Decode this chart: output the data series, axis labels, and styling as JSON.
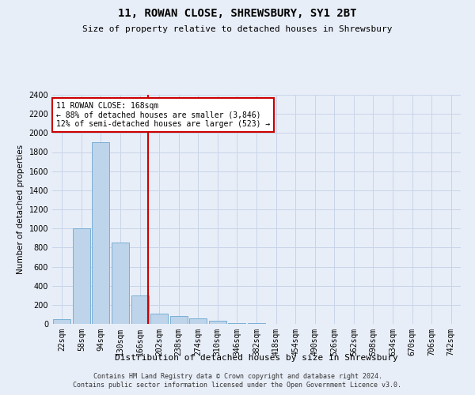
{
  "title": "11, ROWAN CLOSE, SHREWSBURY, SY1 2BT",
  "subtitle": "Size of property relative to detached houses in Shrewsbury",
  "xlabel": "Distribution of detached houses by size in Shrewsbury",
  "ylabel": "Number of detached properties",
  "footnote1": "Contains HM Land Registry data © Crown copyright and database right 2024.",
  "footnote2": "Contains public sector information licensed under the Open Government Licence v3.0.",
  "categories": [
    "22sqm",
    "58sqm",
    "94sqm",
    "130sqm",
    "166sqm",
    "202sqm",
    "238sqm",
    "274sqm",
    "310sqm",
    "346sqm",
    "382sqm",
    "418sqm",
    "454sqm",
    "490sqm",
    "526sqm",
    "562sqm",
    "598sqm",
    "634sqm",
    "670sqm",
    "706sqm",
    "742sqm"
  ],
  "values": [
    50,
    1000,
    1900,
    850,
    300,
    110,
    80,
    55,
    35,
    10,
    5,
    0,
    0,
    0,
    0,
    0,
    0,
    0,
    0,
    0,
    0
  ],
  "bar_color": "#bdd4ea",
  "bar_edge_color": "#7aafd4",
  "grid_color": "#c8d4e8",
  "background_color": "#e8eef8",
  "vline_color": "#cc0000",
  "vline_x": 4.42,
  "annotation_text": "11 ROWAN CLOSE: 168sqm\n← 88% of detached houses are smaller (3,846)\n12% of semi-detached houses are larger (523) →",
  "annotation_box_color": "#ffffff",
  "annotation_box_edge_color": "#cc0000",
  "ylim": [
    0,
    2400
  ],
  "yticks": [
    0,
    200,
    400,
    600,
    800,
    1000,
    1200,
    1400,
    1600,
    1800,
    2000,
    2200,
    2400
  ],
  "title_fontsize": 10,
  "subtitle_fontsize": 8,
  "ylabel_fontsize": 7.5,
  "xlabel_fontsize": 8,
  "tick_fontsize": 7,
  "annotation_fontsize": 7,
  "footnote_fontsize": 6
}
